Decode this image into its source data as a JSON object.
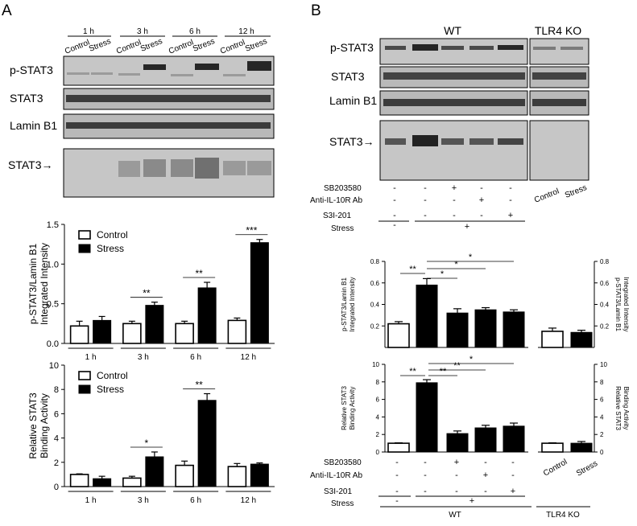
{
  "panel_a": {
    "letter": "A",
    "time_headers": [
      "1 h",
      "3 h",
      "6 h",
      "12 h"
    ],
    "condition_labels": [
      "Control",
      "Stress"
    ],
    "blot_labels": [
      "p-STAT3",
      "STAT3",
      "Lamin B1",
      "STAT3→"
    ],
    "legend": [
      "Control",
      "Stress"
    ]
  },
  "panel_b": {
    "letter": "B",
    "group_headers": [
      "WT",
      "TLR4 KO"
    ],
    "blot_labels": [
      "p-STAT3",
      "STAT3",
      "Lamin B1",
      "STAT3→"
    ],
    "ko_lane_labels": [
      "Control",
      "Stress"
    ],
    "treatment_rows": [
      {
        "label": "SB203580",
        "marks": [
          "-",
          "-",
          "+",
          "-",
          "-"
        ]
      },
      {
        "label": "Anti-IL-10R Ab",
        "marks": [
          "-",
          "-",
          "-",
          "+",
          "-"
        ]
      },
      {
        "label": "S3I-201",
        "marks": [
          "-",
          "-",
          "-",
          "-",
          "+"
        ]
      }
    ],
    "stress_row": {
      "label": "Stress",
      "marks": [
        "-",
        "+"
      ]
    },
    "bottom_group_labels": [
      "WT",
      "TLR4 KO"
    ]
  },
  "chart_data": [
    {
      "type": "bar",
      "categories": [
        "1 h",
        "3 h",
        "6 h",
        "12 h"
      ],
      "series": [
        {
          "name": "Control",
          "values": [
            0.22,
            0.25,
            0.25,
            0.29
          ],
          "errors": [
            0.06,
            0.03,
            0.03,
            0.03
          ]
        },
        {
          "name": "Stress",
          "values": [
            0.29,
            0.48,
            0.7,
            1.27
          ],
          "errors": [
            0.05,
            0.04,
            0.07,
            0.04
          ]
        }
      ],
      "ylabel": "p-STAT3/Lamin B1\nIntegrated Intensity",
      "ylim": [
        0,
        1.5
      ],
      "yticks": [
        "0.0",
        "0.5",
        "1.0",
        "1.5"
      ],
      "significance": [
        "**",
        "**",
        "***"
      ],
      "legend": "top-left"
    },
    {
      "type": "bar",
      "categories": [
        "1 h",
        "3 h",
        "6 h",
        "12 h"
      ],
      "series": [
        {
          "name": "Control",
          "values": [
            1.0,
            0.7,
            1.75,
            1.65
          ],
          "errors": [
            0.05,
            0.15,
            0.35,
            0.25
          ]
        },
        {
          "name": "Stress",
          "values": [
            0.65,
            2.45,
            7.1,
            1.85
          ],
          "errors": [
            0.2,
            0.4,
            0.55,
            0.1
          ]
        }
      ],
      "ylabel": "Relative STAT3\nBinding Activity",
      "ylim": [
        0,
        10
      ],
      "yticks": [
        "0",
        "2",
        "4",
        "6",
        "8",
        "10"
      ],
      "significance": [
        "*",
        "**"
      ],
      "legend": "top-left"
    },
    {
      "type": "bar",
      "categories": [
        "WT 1",
        "WT 2",
        "WT 3",
        "WT 4",
        "WT 5",
        "TLR4 KO Control",
        "TLR4 KO Stress"
      ],
      "values": [
        0.22,
        0.58,
        0.32,
        0.35,
        0.33,
        0.15,
        0.14
      ],
      "errors": [
        0.02,
        0.06,
        0.04,
        0.02,
        0.02,
        0.03,
        0.02
      ],
      "fill": [
        "white",
        "black",
        "black",
        "black",
        "black",
        "white",
        "black"
      ],
      "ylabel": "p-STAT3/Lamin B1\nIntegrated Intensity",
      "ylim": [
        0,
        0.8
      ],
      "yticks": [
        "0.2",
        "0.4",
        "0.6",
        "0.8"
      ],
      "significance": [
        "**",
        "*",
        "*",
        "*"
      ]
    },
    {
      "type": "bar",
      "categories": [
        "WT 1",
        "WT 2",
        "WT 3",
        "WT 4",
        "WT 5",
        "TLR4 KO Control",
        "TLR4 KO Stress"
      ],
      "values": [
        1.0,
        7.9,
        2.1,
        2.75,
        2.95,
        1.0,
        1.0
      ],
      "errors": [
        0.05,
        0.35,
        0.3,
        0.3,
        0.35,
        0.05,
        0.2
      ],
      "fill": [
        "white",
        "black",
        "black",
        "black",
        "black",
        "white",
        "black"
      ],
      "ylabel": "Relative STAT3\nBinding Activity",
      "ylim": [
        0,
        10
      ],
      "yticks": [
        "0",
        "2",
        "4",
        "6",
        "8",
        "10"
      ],
      "significance": [
        "**",
        "**",
        "**",
        "*"
      ]
    }
  ]
}
